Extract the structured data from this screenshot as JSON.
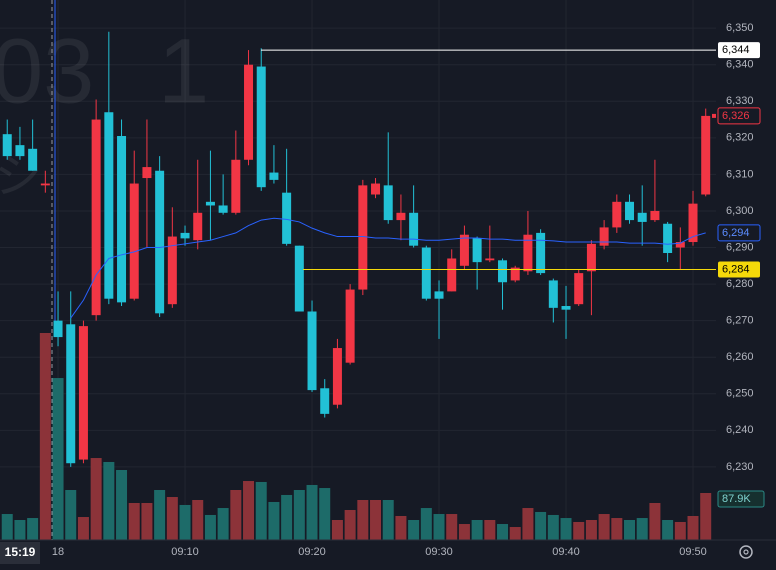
{
  "chart_data": {
    "type": "candlestick",
    "watermark": [
      "03",
      "1",
      "シ"
    ],
    "crosshair_time": "15:19",
    "x": [
      -4,
      -3,
      -2,
      -1,
      0,
      1,
      2,
      3,
      4,
      5,
      6,
      7,
      8,
      9,
      10,
      11,
      12,
      13,
      14,
      15,
      16,
      17,
      18,
      19,
      20,
      21,
      22,
      23,
      24,
      25,
      26,
      27,
      28,
      29,
      30,
      31,
      32,
      33,
      34,
      35,
      36,
      37,
      38,
      39,
      40,
      41,
      42,
      43,
      44,
      45,
      46,
      47,
      48,
      49,
      50,
      51
    ],
    "open": [
      6321,
      6318,
      6317,
      6307,
      6270,
      6269,
      6232,
      6271.5,
      6327,
      6320.5,
      6276,
      6309,
      6311,
      6274.5,
      6294,
      6292,
      6302.5,
      6301.5,
      6299.5,
      6314,
      6339.5,
      6310.5,
      6305,
      6290.5,
      6272.5,
      6251.5,
      6247,
      6258.5,
      6278.5,
      6304.5,
      6307,
      6297.5,
      6299.5,
      6290,
      6278,
      6278,
      6285,
      6292.5,
      6286.5,
      6286.5,
      6281,
      6283.5,
      6294,
      6281,
      6274,
      6274.5,
      6283.5,
      6290.5,
      6295.5,
      6302.5,
      6299.5,
      6297.5,
      6296.5,
      6290,
      6291.5,
      6304.5
    ],
    "high": [
      6325,
      6323,
      6325,
      6311,
      6278,
      6278,
      6270,
      6330.5,
      6349,
      6325,
      6316.5,
      6325,
      6315,
      6301,
      6296,
      6314,
      6316.5,
      6310,
      6322,
      6344,
      6344.5,
      6318,
      6317,
      6290.5,
      6275.5,
      6254,
      6265,
      6280,
      6308.5,
      6309,
      6321.5,
      6304.5,
      6307,
      6290.5,
      6281,
      6289.5,
      6296,
      6293,
      6296,
      6287,
      6285,
      6300,
      6295,
      6281.5,
      6279.5,
      6284,
      6292,
      6297.5,
      6304.5,
      6304.5,
      6307,
      6314,
      6297,
      6295.5,
      6305.5,
      6328
    ],
    "low": [
      6314,
      6314,
      6311,
      6305,
      6263,
      6230,
      6231,
      6270,
      6274.5,
      6274,
      6275.5,
      6290,
      6271,
      6273.5,
      6290.5,
      6289.5,
      6292,
      6299,
      6299,
      6312.5,
      6305.5,
      6307.5,
      6290.5,
      6272.5,
      6250.5,
      6243.5,
      6246,
      6258,
      6277,
      6303.5,
      6296.5,
      6292,
      6290,
      6275.5,
      6265,
      6278,
      6284,
      6278.5,
      6286,
      6273,
      6280.5,
      6282.5,
      6282.5,
      6269.5,
      6265,
      6274,
      6271.5,
      6289.5,
      6294,
      6296.5,
      6290.5,
      6297,
      6286,
      6284,
      6290.5,
      6304
    ],
    "close": [
      6315,
      6315,
      6311,
      6307.5,
      6265.5,
      6231,
      6268.5,
      6325,
      6276,
      6275,
      6307.5,
      6312,
      6272,
      6293,
      6292.5,
      6299.5,
      6301.5,
      6299.5,
      6314,
      6340,
      6306.5,
      6308.5,
      6291,
      6272.5,
      6251,
      6244.5,
      6262.5,
      6278.5,
      6307,
      6307.5,
      6297.5,
      6299.5,
      6290.5,
      6276,
      6276,
      6287,
      6293.5,
      6286,
      6287,
      6280.5,
      6284.5,
      6293.5,
      6283,
      6273.5,
      6273,
      6283,
      6291,
      6295.5,
      6302.5,
      6297.5,
      6297,
      6300,
      6288.5,
      6291.5,
      6302,
      6326
    ],
    "last_label": "6,326",
    "up_color": "#f23645",
    "down_color": "#22c1d6",
    "volume": {
      "values": [
        48600,
        37400,
        41100,
        387100,
        302900,
        93500,
        43000,
        153300,
        145900,
        130900,
        69200,
        69200,
        93500,
        80400,
        65500,
        74800,
        46800,
        59800,
        93500,
        110300,
        108500,
        71100,
        84200,
        93500,
        102900,
        97200,
        37400,
        56100,
        74800,
        74800,
        74800,
        44900,
        37400,
        59800,
        48600,
        48600,
        29900,
        37400,
        37400,
        29900,
        24300,
        59800,
        52400,
        46800,
        41100,
        33700,
        37400,
        48600,
        41100,
        37400,
        41100,
        69200,
        37400,
        33700,
        44900,
        87900
      ],
      "value_labels": [
        null,
        null,
        null,
        null,
        null,
        null,
        null,
        null,
        null,
        null,
        null,
        null,
        null,
        null,
        null,
        null,
        null,
        null,
        null,
        null,
        null,
        null,
        null,
        null,
        null,
        null,
        null,
        null,
        null,
        null,
        null,
        null,
        null,
        null,
        null,
        null,
        null,
        null,
        null,
        null,
        null,
        null,
        null,
        null,
        null,
        null,
        null,
        null,
        null,
        null,
        null,
        null,
        null,
        null,
        null,
        "87.9K"
      ],
      "up_color": "#8c3339",
      "down_color": "#1d6b69"
    },
    "ma": {
      "color": "#2962ff",
      "label": "6,294",
      "values": [
        null,
        null,
        null,
        null,
        null,
        6270.7,
        6275.6,
        6282.5,
        6287,
        6288,
        6288.8,
        6290,
        6290,
        6290.5,
        6291,
        6291.5,
        6292,
        6293,
        6294,
        6296,
        6297.5,
        6298,
        6297.7,
        6297,
        6295.3,
        6294,
        6293,
        6293,
        6293,
        6292.6,
        6292.6,
        6292.3,
        6292.3,
        6292,
        6292,
        6292.3,
        6292.6,
        6292.6,
        6292.3,
        6292.3,
        6292,
        6292,
        6292,
        6291.8,
        6291.5,
        6291.5,
        6291.5,
        6291.5,
        6291.5,
        6291.2,
        6291.2,
        6291.2,
        6290.9,
        6291.2,
        6293,
        6294
      ]
    },
    "price_lines": [
      {
        "value": 6344,
        "label": "6,344",
        "color": "#ffffff"
      },
      {
        "value": 6284,
        "label": "6,284",
        "color": "#f5d90a"
      }
    ],
    "xlim": [
      -4.57,
      51.81
    ],
    "ylim": [
      6210,
      6357.7
    ],
    "xticks": [
      {
        "value": 0,
        "label": "18"
      },
      {
        "value": 10,
        "label": "09:10"
      },
      {
        "value": 20,
        "label": "09:20"
      },
      {
        "value": 30,
        "label": "09:30"
      },
      {
        "value": 40,
        "label": "09:40"
      },
      {
        "value": 50,
        "label": "09:50"
      }
    ],
    "yticks": [
      {
        "value": 6230,
        "label": "6,230"
      },
      {
        "value": 6240,
        "label": "6,240"
      },
      {
        "value": 6250,
        "label": "6,250"
      },
      {
        "value": 6260,
        "label": "6,260"
      },
      {
        "value": 6270,
        "label": "6,270"
      },
      {
        "value": 6280,
        "label": "6,280"
      },
      {
        "value": 6290,
        "label": "6,290"
      },
      {
        "value": 6300,
        "label": "6,300"
      },
      {
        "value": 6310,
        "label": "6,310"
      },
      {
        "value": 6320,
        "label": "6,320"
      },
      {
        "value": 6330,
        "label": "6,330"
      },
      {
        "value": 6340,
        "label": "6,340"
      },
      {
        "value": 6350,
        "label": "6,350"
      }
    ],
    "grid": true
  }
}
